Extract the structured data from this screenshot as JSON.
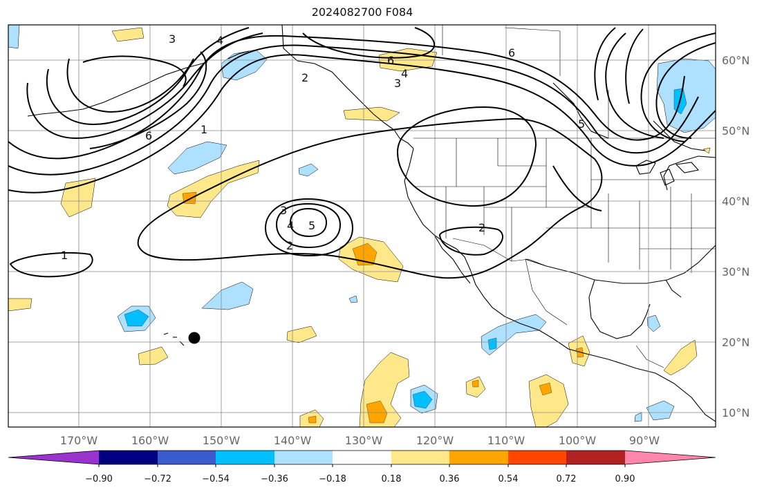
{
  "title": "2024082700 F084",
  "map": {
    "lon_labels": [
      "170°W",
      "160°W",
      "150°W",
      "140°W",
      "130°W",
      "120°W",
      "110°W",
      "100°W",
      "90°W"
    ],
    "lat_labels": [
      "60°N",
      "50°N",
      "40°N",
      "30°N",
      "20°N",
      "10°N"
    ],
    "contour_labels": [
      "1",
      "2",
      "3",
      "4",
      "5",
      "6"
    ],
    "marker": "hurricane-position-marker"
  },
  "colorbar": {
    "tick_labels": [
      "−0.90",
      "−0.72",
      "−0.54",
      "−0.36",
      "−0.18",
      "0.18",
      "0.36",
      "0.54",
      "0.72",
      "0.90"
    ],
    "colors": [
      "#9a32cd",
      "#000080",
      "#3a5bcf",
      "#00bfff",
      "#aee0ff",
      "#ffffff",
      "#ffe88a",
      "#ffa500",
      "#ff4500",
      "#b22222",
      "#ff88aa"
    ]
  }
}
